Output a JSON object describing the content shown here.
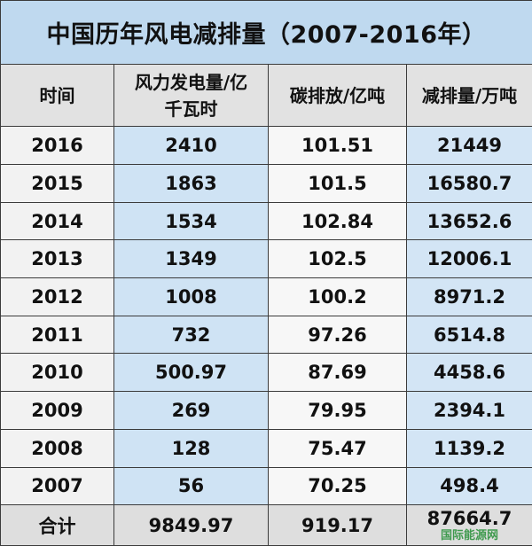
{
  "title": "中国历年风电减排量（2007-2016年）",
  "headers": [
    "时间",
    "风力发电量/亿千瓦时",
    "碳排放/亿吨",
    "减排量/万吨"
  ],
  "rows": [
    [
      "2016",
      "2410",
      "101.51",
      "21449"
    ],
    [
      "2015",
      "1863",
      "101.5",
      "16580.7"
    ],
    [
      "2014",
      "1534",
      "102.84",
      "13652.6"
    ],
    [
      "2013",
      "1349",
      "102.5",
      "12006.1"
    ],
    [
      "2012",
      "1008",
      "100.2",
      "8971.2"
    ],
    [
      "2011",
      "732",
      "97.26",
      "6514.8"
    ],
    [
      "2010",
      "500.97",
      "87.69",
      "4458.6"
    ],
    [
      "2009",
      "269",
      "79.95",
      "2394.1"
    ],
    [
      "2008",
      "128",
      "75.47",
      "1139.2"
    ],
    [
      "2007",
      "56",
      "70.25",
      "498.4"
    ]
  ],
  "total": [
    "合计",
    "9849.97",
    "919.17",
    "87664.7"
  ],
  "watermark": "国际能源网",
  "colors": {
    "title_bg": "#bfd9ef",
    "header_bg": "#e2e2e2",
    "blue_column": "#cfe3f4"
  }
}
